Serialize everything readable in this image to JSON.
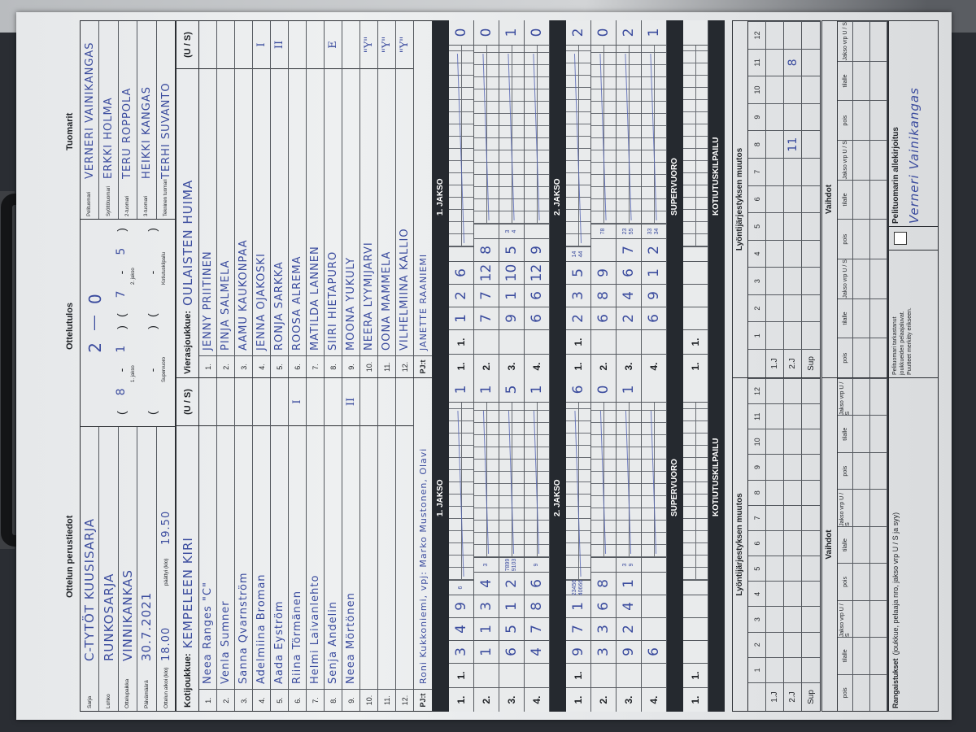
{
  "basic_info": {
    "title": "Ottelun perustiedot",
    "fields": [
      {
        "label": "Sarja",
        "value": "C-TYTÖT KUUSISARJA"
      },
      {
        "label": "Lohko",
        "value": "RUNKOSARJA"
      },
      {
        "label": "Ottelupaikka",
        "value": "VINNIKANKAS"
      },
      {
        "label": "Päivämäärä",
        "value": "30.7.2021"
      }
    ],
    "start_label": "Ottelun alkoi (klo)",
    "start_value": "18.00",
    "end_label": "päättyi (klo)",
    "end_value": "19.50"
  },
  "result": {
    "title": "Ottelutulos",
    "home_total": "2",
    "away_total": "0",
    "dash": "—",
    "periods": [
      {
        "label": "1. jakso",
        "home": "8",
        "away": "1"
      },
      {
        "label": "2. jakso",
        "home": "7",
        "away": "5"
      },
      {
        "label": "Supervuoro",
        "home": "",
        "away": ""
      },
      {
        "label": "Kotiutuskilpailu",
        "home": "",
        "away": ""
      }
    ]
  },
  "referees": {
    "title": "Tuomarit",
    "list": [
      {
        "role": "Pelituomari",
        "name": "VERNERI VAINIKANGAS"
      },
      {
        "role": "Syöttötuomari",
        "name": "ERKKI HOLMA"
      },
      {
        "role": "2-tuomari",
        "name": "TERU ROPPOLA"
      },
      {
        "role": "3-tuomari",
        "name": "HEIKKI KANGAS"
      },
      {
        "role": "Tekninen tuomari",
        "name": "TERHI SUVANTO"
      }
    ]
  },
  "home": {
    "label": "Kotijoukkue:",
    "name": "KEMPELEEN KIRI",
    "us_label": "(U / S)",
    "pj_label": "PJ:t",
    "pj_value": "Roni Kukkoniemi, vpj: Marko Mustonen, Olavi",
    "players": [
      {
        "no": "1.",
        "name": "Neea Ranges \"C\"",
        "mark": ""
      },
      {
        "no": "2.",
        "name": "Venla Sumner",
        "mark": ""
      },
      {
        "no": "3.",
        "name": "Sanna Qvarnström",
        "mark": ""
      },
      {
        "no": "4.",
        "name": "Adelmiina Broman",
        "mark": ""
      },
      {
        "no": "5.",
        "name": "Aada Eyström",
        "mark": ""
      },
      {
        "no": "6.",
        "name": "Riina Törmänen",
        "mark": "I"
      },
      {
        "no": "7.",
        "name": "Helmi Laivanlehto",
        "mark": ""
      },
      {
        "no": "8.",
        "name": "Senja Andelin",
        "mark": ""
      },
      {
        "no": "9.",
        "name": "Neea Mörtönen",
        "mark": "II"
      },
      {
        "no": "10.",
        "name": "",
        "mark": ""
      },
      {
        "no": "11.",
        "name": "",
        "mark": ""
      },
      {
        "no": "12.",
        "name": "",
        "mark": ""
      }
    ]
  },
  "away": {
    "label": "Vierasjoukkue:",
    "name": "OULAISTEN HUIMA",
    "us_label": "(U / S)",
    "pj_label": "PJ:t",
    "pj_value": "JANETTE RAANIEMI",
    "players": [
      {
        "no": "1.",
        "name": "JENNY PRIITINEN",
        "mark": ""
      },
      {
        "no": "2.",
        "name": "PINJA SALMELA",
        "mark": ""
      },
      {
        "no": "3.",
        "name": "AAMU KAUKONPÄÄ",
        "mark": ""
      },
      {
        "no": "4.",
        "name": "JENNA OJAKOSKI",
        "mark": "I"
      },
      {
        "no": "5.",
        "name": "RONJA SARKKA",
        "mark": "II"
      },
      {
        "no": "6.",
        "name": "ROOSA ALREMA",
        "mark": ""
      },
      {
        "no": "7.",
        "name": "MATILDA LÄNNEN",
        "mark": ""
      },
      {
        "no": "8.",
        "name": "SIIRI HIETAPURO",
        "mark": "E"
      },
      {
        "no": "9.",
        "name": "MOONA YUKULY",
        "mark": ""
      },
      {
        "no": "10.",
        "name": "NEERA LYYMIJÄRVI",
        "mark": "\"Y\""
      },
      {
        "no": "11.",
        "name": "OONA MÄMMELÄ",
        "mark": "\"Y\""
      },
      {
        "no": "12.",
        "name": "VILHELMIINA KALLIO",
        "mark": "\"Y\""
      }
    ]
  },
  "innings": [
    {
      "label": "1. JAKSO",
      "home": [
        {
          "label": "1.",
          "sub": "1.",
          "digits": [
            "3",
            "4",
            "9"
          ],
          "small": [
            "6",
            ""
          ],
          "total": "1"
        },
        {
          "label": "2.",
          "sub": "",
          "digits": [
            "1",
            "1",
            "3",
            "4"
          ],
          "small": [
            "3",
            ""
          ],
          "total": "1"
        },
        {
          "label": "3.",
          "sub": "",
          "digits": [
            "6",
            "5",
            "1",
            "2"
          ],
          "small": [
            "7899",
            "9103"
          ],
          "total": "5"
        },
        {
          "label": "4.",
          "sub": "",
          "digits": [
            "4",
            "7",
            "8",
            "6"
          ],
          "small": [
            "9",
            ""
          ],
          "total": "1"
        }
      ],
      "away": [
        {
          "label": "1.",
          "sub": "1.",
          "digits": [
            "1",
            "2",
            "6"
          ],
          "small": [
            "",
            ""
          ],
          "total": "0"
        },
        {
          "label": "2.",
          "sub": "",
          "digits": [
            "7",
            "7",
            "12",
            "8"
          ],
          "small": [
            "",
            ""
          ],
          "total": "0"
        },
        {
          "label": "3.",
          "sub": "",
          "digits": [
            "9",
            "1",
            "10",
            "5"
          ],
          "small": [
            "3",
            "4"
          ],
          "total": "1"
        },
        {
          "label": "4.",
          "sub": "",
          "digits": [
            "6",
            "6",
            "12",
            "9"
          ],
          "small": [
            "",
            ""
          ],
          "total": "0"
        }
      ]
    },
    {
      "label": "2. JAKSO",
      "home": [
        {
          "label": "1.",
          "sub": "1.",
          "digits": [
            "9",
            "7",
            "1"
          ],
          "small": [
            "23456",
            "40666"
          ],
          "total": "6"
        },
        {
          "label": "2.",
          "sub": "",
          "digits": [
            "3",
            "3",
            "6",
            "8"
          ],
          "small": [
            "",
            ""
          ],
          "total": "0"
        },
        {
          "label": "3.",
          "sub": "",
          "digits": [
            "9",
            "2",
            "4",
            "1"
          ],
          "small": [
            "3",
            "9"
          ],
          "total": "1"
        },
        {
          "label": "4.",
          "sub": "",
          "digits": [
            "6",
            "",
            "",
            ""
          ],
          "small": [
            "",
            ""
          ],
          "total": ""
        }
      ],
      "away": [
        {
          "label": "1.",
          "sub": "1.",
          "digits": [
            "2",
            "3",
            "5"
          ],
          "small": [
            "14",
            "44"
          ],
          "total": "2"
        },
        {
          "label": "2.",
          "sub": "",
          "digits": [
            "6",
            "8",
            "9"
          ],
          "small": [
            "78",
            ""
          ],
          "total": "0"
        },
        {
          "label": "3.",
          "sub": "",
          "digits": [
            "2",
            "4",
            "6",
            "7"
          ],
          "small": [
            "23",
            "55"
          ],
          "total": "2"
        },
        {
          "label": "4.",
          "sub": "",
          "digits": [
            "6",
            "9",
            "1",
            "2"
          ],
          "small": [
            "33",
            "34"
          ],
          "total": "1"
        }
      ]
    },
    {
      "label": "SUPERVUORO",
      "home": [
        {
          "label": "1.",
          "sub": "1.",
          "digits": [
            "",
            "",
            ""
          ],
          "small": [
            "",
            ""
          ],
          "total": ""
        }
      ],
      "away": [
        {
          "label": "1.",
          "sub": "1.",
          "digits": [
            "",
            "",
            ""
          ],
          "small": [
            "",
            ""
          ],
          "total": ""
        }
      ]
    },
    {
      "label": "KOTIUTUSKILPAILU",
      "home": [],
      "away": []
    }
  ],
  "lineup_change": {
    "title": "Lyöntijärjestyksen muutos",
    "columns": [
      "1",
      "2",
      "3",
      "4",
      "5",
      "6",
      "7",
      "8",
      "9",
      "10",
      "11",
      "12"
    ],
    "home_rows": [
      {
        "label": "1.J",
        "cells": [
          "",
          "",
          "",
          "",
          "",
          "",
          "",
          "",
          "",
          "",
          "",
          ""
        ]
      },
      {
        "label": "2.J",
        "cells": [
          "",
          "",
          "",
          "",
          "",
          "",
          "",
          "",
          "",
          "",
          "",
          ""
        ]
      },
      {
        "label": "Sup",
        "cells": [
          "",
          "",
          "",
          "",
          "",
          "",
          "",
          "",
          "",
          "",
          "",
          ""
        ]
      }
    ],
    "away_rows": [
      {
        "label": "1.J",
        "cells": [
          "",
          "",
          "",
          "",
          "",
          "",
          "",
          "",
          "",
          "",
          "",
          ""
        ]
      },
      {
        "label": "2.J",
        "cells": [
          "",
          "",
          "",
          "",
          "",
          "",
          "",
          "11",
          "",
          "",
          "8",
          ""
        ]
      },
      {
        "label": "Sup",
        "cells": [
          "",
          "",
          "",
          "",
          "",
          "",
          "",
          "",
          "",
          "",
          "",
          ""
        ]
      }
    ]
  },
  "substitutions": {
    "title": "Vaihdot",
    "headers": [
      "pois",
      "tilalle",
      "Jakso vrp U / S",
      "pois",
      "tilalle",
      "Jakso vrp U / S",
      "pois",
      "tilalle",
      "Jakso vrp U / S"
    ]
  },
  "footer": {
    "penalties_label": "Rangaistukset",
    "penalties_hint": "(joukkue, pelaaja nro, jakso vrp U / S ja syy)",
    "check_text": [
      "Pelituomari tarkastanut",
      "joukkueiden pelaajaluvat.",
      "Puutteet merkitty erikseen."
    ],
    "signature_label": "Pelituomarin allekirjoitus",
    "signature": "Verneri Vainikangas"
  },
  "colors": {
    "ink": "#3b4c9e",
    "band": "#25292f",
    "clipboard": "#2a2d33"
  }
}
